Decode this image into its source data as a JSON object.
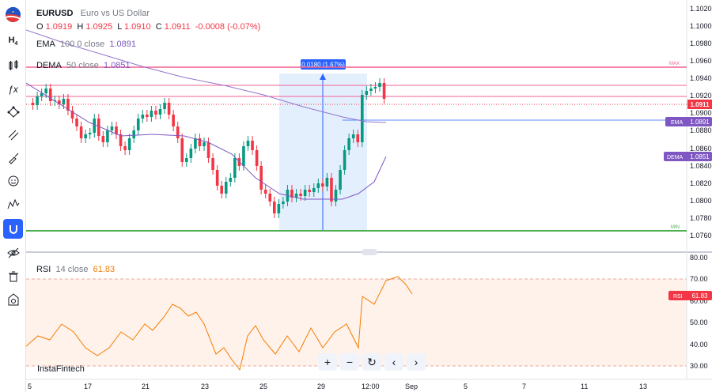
{
  "symbol": {
    "ticker": "EURUSD",
    "description": "Euro vs US Dollar",
    "o_label": "O",
    "o_value": "1.0919",
    "h_label": "H",
    "h_value": "1.0925",
    "l_label": "L",
    "l_value": "1.0910",
    "c_label": "C",
    "c_value": "1.0911",
    "change": "-0.0008 (-0.07%)"
  },
  "indicators": {
    "ema": {
      "name": "EMA",
      "params": "100  0  close",
      "value": "1.0891"
    },
    "dema": {
      "name": "DEMA",
      "params": "50  close",
      "value": "1.0851"
    },
    "rsi": {
      "name": "RSI",
      "params": "14  close",
      "value": "61.83"
    }
  },
  "measure_label": "0.0180 (1.67%)",
  "max_label": "MAX",
  "min_label": "MIN",
  "price_axis": {
    "ticks": [
      "1.1020",
      "1.1000",
      "1.0980",
      "1.0960",
      "1.0940",
      "1.0920",
      "1.0900",
      "1.0880",
      "1.0860",
      "1.0840",
      "1.0820",
      "1.0800",
      "1.0780",
      "1.0760"
    ],
    "current_price": "1.0911",
    "ema_tag": "EMA",
    "ema_value": "1.0891",
    "dema_tag": "DEMA",
    "dema_value": "1.0851"
  },
  "rsi_axis": {
    "ticks": [
      "80.00",
      "70.00",
      "60.00",
      "50.00",
      "40.00",
      "30.00"
    ],
    "tag": "RSI",
    "value": "61.83"
  },
  "time_axis": [
    "5",
    "17",
    "21",
    "23",
    "25",
    "29",
    "12:00",
    "Sep",
    "5",
    "7",
    "11",
    "13"
  ],
  "zoom_controls": [
    "+",
    "−",
    "↻",
    "‹",
    "›"
  ],
  "brand": "InstaFintech",
  "colors": {
    "up": "#089981",
    "down": "#f23645",
    "ema": "#7e57c2",
    "rsi": "#f57c00",
    "accent": "#2962ff",
    "max": "#f06292",
    "min": "#4caf50"
  },
  "toolbar": [
    "h4-timeframe-icon",
    "candles-icon",
    "fx-indicator-icon",
    "pivot-icon",
    "trend-lines-icon",
    "brush-icon",
    "emoji-icon",
    "patterns-icon",
    "magnet-icon",
    "eye-off-icon",
    "trash-icon",
    "camera-icon"
  ]
}
